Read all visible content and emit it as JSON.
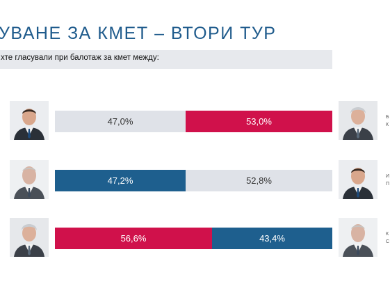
{
  "title": "УВАНЕ ЗА КМЕТ – ВТОРИ ТУР",
  "question": "хте гласували при балотаж за кмет между:",
  "colors": {
    "red": "#d0114b",
    "blue": "#1e5f8e",
    "gray": "#dfe2e8",
    "title": "#1f5b8c"
  },
  "chart_data": {
    "type": "bar",
    "orientation": "horizontal-stacked-100",
    "rows": [
      {
        "left_label": "",
        "right_label_lines": [
          "Б",
          "К"
        ],
        "left_value": 47.0,
        "right_value": 53.0,
        "left_text": "47,0%",
        "right_text": "53,0%",
        "left_color": "gray",
        "right_color": "red"
      },
      {
        "left_label": "",
        "right_label_lines": [
          "И",
          "П"
        ],
        "left_value": 47.2,
        "right_value": 52.8,
        "left_text": "47,2%",
        "right_text": "52,8%",
        "left_color": "blue",
        "right_color": "gray"
      },
      {
        "left_label": "",
        "right_label_lines": [
          "К",
          "С"
        ],
        "left_value": 56.6,
        "right_value": 43.4,
        "left_text": "56,6%",
        "right_text": "43,4%",
        "left_color": "red",
        "right_color": "blue"
      }
    ]
  }
}
